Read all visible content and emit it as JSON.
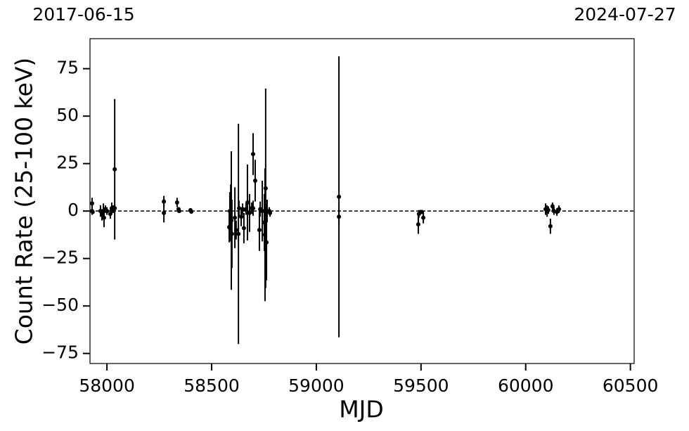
{
  "chart_data": {
    "type": "errorbar-scatter",
    "xlabel": "MJD",
    "ylabel": "Count Rate (25-100 keV)",
    "start_label": "2017-06-15",
    "end_label": "2024-07-27",
    "xlim": [
      57919,
      60518
    ],
    "ylim": [
      -80.3,
      90.8
    ],
    "xticks": [
      58000,
      58500,
      59000,
      59500,
      60000,
      60500
    ],
    "yticks": [
      {
        "value": -75,
        "label": "−75"
      },
      {
        "value": -50,
        "label": "−50"
      },
      {
        "value": -25,
        "label": "−25"
      },
      0,
      25,
      50,
      75
    ],
    "reference_line": 0,
    "color": "#000000",
    "x": [
      57929,
      57929,
      57932,
      57969,
      57976,
      57983,
      57986,
      57993,
      58000,
      58016,
      58023,
      58030,
      58037,
      58037,
      58272,
      58272,
      58335,
      58342,
      58345,
      58399,
      58403,
      58584,
      58587,
      58591,
      58594,
      58597,
      58611,
      58617,
      58628,
      58631,
      58641,
      58648,
      58654,
      58664,
      58671,
      58681,
      58691,
      58698,
      58698,
      58708,
      58728,
      58732,
      58742,
      58752,
      58755,
      58758,
      58762,
      58765,
      58775,
      58779,
      59108,
      59108,
      59487,
      59490,
      59497,
      59504,
      59511,
      60095,
      60102,
      60108,
      60118,
      60128,
      60135,
      60149,
      60159
    ],
    "values": [
      4,
      0,
      -0.5,
      0,
      -2,
      0,
      -3.5,
      1,
      0,
      -1.5,
      1.5,
      1,
      22,
      1.5,
      5,
      -1,
      4.5,
      1,
      0,
      0.5,
      -0.3,
      -8.5,
      0,
      -1,
      -5,
      -12,
      -3.5,
      -10,
      -12,
      1.5,
      -3,
      1,
      -9,
      1,
      4.5,
      -1,
      1.5,
      30,
      1.5,
      16,
      -10,
      1,
      0,
      -6,
      -12.5,
      12,
      -16.5,
      0,
      0,
      -1,
      7.5,
      -3,
      -7,
      -1.5,
      -0.5,
      -0.5,
      -3.5,
      1,
      0,
      0.5,
      -8,
      2.5,
      0,
      -0.5,
      1
    ],
    "errors": [
      3,
      2,
      1,
      3,
      3,
      4,
      5,
      2,
      2,
      2.5,
      3,
      2,
      37,
      2,
      3,
      5,
      2.5,
      1,
      1,
      1,
      1,
      8,
      10,
      15,
      36.5,
      18,
      16,
      5,
      58,
      4,
      5,
      3,
      8,
      3,
      20,
      10,
      3,
      11,
      4,
      11,
      11,
      4,
      16,
      15,
      35,
      52.5,
      20,
      6,
      2,
      2,
      74,
      4,
      5,
      2,
      1,
      1,
      3,
      3,
      3,
      2,
      4,
      2,
      2,
      2,
      2
    ]
  }
}
